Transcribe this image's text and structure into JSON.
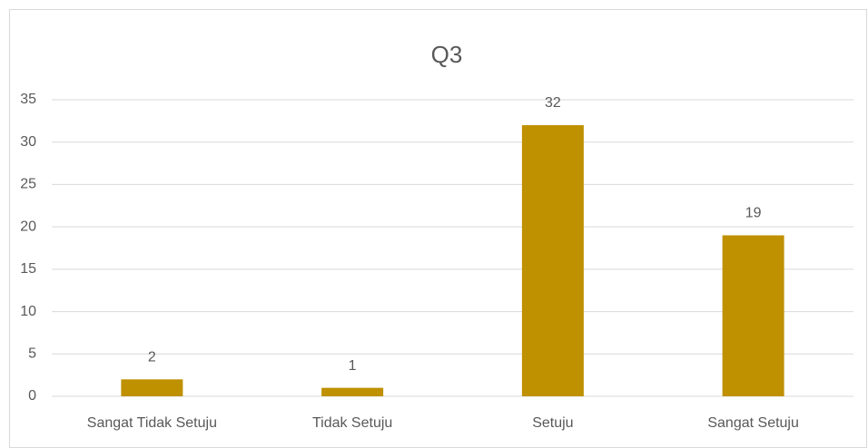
{
  "chart_data": {
    "type": "bar",
    "title": "Q3",
    "categories": [
      "Sangat Tidak Setuju",
      "Tidak Setuju",
      "Setuju",
      "Sangat Setuju"
    ],
    "values": [
      2,
      1,
      32,
      19
    ],
    "color": "#bf9000",
    "ylim": [
      0,
      35
    ],
    "yticks": [
      0,
      5,
      10,
      15,
      20,
      25,
      30,
      35
    ],
    "grid": true,
    "data_labels": true
  }
}
